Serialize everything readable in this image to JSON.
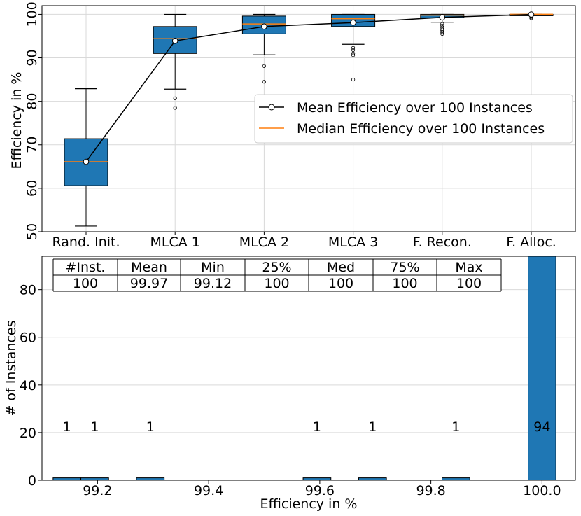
{
  "colors": {
    "box_fill": "#1f77b4",
    "median": "#ff7f0e",
    "mean_line": "#000000",
    "grid": "#d9d9d9",
    "bar_fill": "#1f77b4"
  },
  "chart_data": [
    {
      "type": "box",
      "title": "",
      "xlabel": "",
      "ylabel": "Efficiency in %",
      "ylim": [
        50,
        102
      ],
      "yticks": [
        50,
        60,
        70,
        80,
        90,
        100
      ],
      "grid": true,
      "categories": [
        "Rand. Init.",
        "MLCA 1",
        "MLCA 2",
        "MLCA 3",
        "F. Recon.",
        "F. Alloc."
      ],
      "boxes": [
        {
          "whisker_low": 51.3,
          "q1": 60.6,
          "median": 66.1,
          "q3": 71.4,
          "whisker_high": 82.9,
          "fliers": []
        },
        {
          "whisker_low": 82.8,
          "q1": 91.0,
          "median": 94.4,
          "q3": 97.2,
          "whisker_high": 100.0,
          "fliers": [
            80.7,
            78.5
          ]
        },
        {
          "whisker_low": 90.7,
          "q1": 95.5,
          "median": 97.8,
          "q3": 99.6,
          "whisker_high": 100.0,
          "fliers": [
            88.1,
            84.5
          ]
        },
        {
          "whisker_low": 93.1,
          "q1": 97.2,
          "median": 99.0,
          "q3": 100.0,
          "whisker_high": 100.0,
          "fliers": [
            92.3,
            91.8,
            91.0,
            90.6,
            85.0
          ]
        },
        {
          "whisker_low": 98.2,
          "q1": 99.2,
          "median": 99.8,
          "q3": 100.0,
          "whisker_high": 100.0,
          "fliers": [
            97.8,
            97.4,
            97.0,
            96.6,
            96.3,
            95.9,
            95.5
          ]
        },
        {
          "whisker_low": 100.0,
          "q1": 100.0,
          "median": 100.0,
          "q3": 100.0,
          "whisker_high": 100.0,
          "fliers": [
            99.6,
            99.3,
            99.1
          ]
        }
      ],
      "mean_series": {
        "name": "Mean Efficiency over 100 Instances",
        "values": [
          66.1,
          93.9,
          97.2,
          98.1,
          99.3,
          99.97
        ]
      },
      "legend": {
        "placement": "center-right",
        "entries": [
          "Mean Efficiency over 100 Instances",
          "Median Efficiency over 100 Instances"
        ]
      }
    },
    {
      "type": "bar",
      "title": "",
      "xlabel": "Efficiency in %",
      "ylabel": "# of Instances",
      "xlim": [
        99.1,
        100.06
      ],
      "ylim": [
        0,
        94
      ],
      "xticks": [
        99.2,
        99.4,
        99.6,
        99.8,
        100.0
      ],
      "xtick_labels": [
        "99.2",
        "99.4",
        "99.6",
        "99.8",
        "100.0"
      ],
      "yticks": [
        0,
        20,
        40,
        60,
        80
      ],
      "grid": true,
      "bar_width": 0.05,
      "bars": [
        {
          "x": 99.145,
          "count": 1,
          "label": "1"
        },
        {
          "x": 99.195,
          "count": 1,
          "label": "1"
        },
        {
          "x": 99.295,
          "count": 1,
          "label": "1"
        },
        {
          "x": 99.595,
          "count": 1,
          "label": "1"
        },
        {
          "x": 99.695,
          "count": 1,
          "label": "1"
        },
        {
          "x": 99.845,
          "count": 1,
          "label": "1"
        },
        {
          "x": 100.0,
          "count": 94,
          "label": "94"
        }
      ],
      "table": {
        "headers": [
          "#Inst.",
          "Mean",
          "Min",
          "25%",
          "Med",
          "75%",
          "Max"
        ],
        "rows": [
          [
            "100",
            "99.97",
            "99.12",
            "100",
            "100",
            "100",
            "100"
          ]
        ]
      }
    }
  ]
}
